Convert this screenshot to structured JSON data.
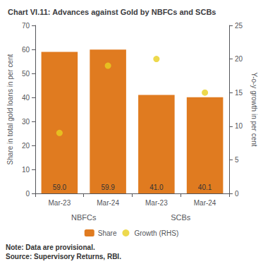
{
  "chart_data": {
    "type": "bar",
    "title": "Chart VI.11: Advances against Gold by NBFCs and SCBs",
    "categories": [
      "Mar-23",
      "Mar-24",
      "Mar-23",
      "Mar-24"
    ],
    "annotations": [
      "NBFCs",
      "SCBs"
    ],
    "note": "Note: Data are provisional.\nSource: Supervisory Returns, RBI.",
    "series": [
      {
        "name": "Share",
        "type": "bar",
        "color": "#E07B20",
        "values": [
          59.0,
          59.9,
          41.0,
          40.1
        ],
        "value_labels": [
          "59.0",
          "59.9",
          "41.0",
          "40.1"
        ],
        "data_labels": true
      },
      {
        "name": "Growth (RHS)",
        "type": "scatter",
        "color": "#E8D020",
        "marker": "circle",
        "axis": "y2",
        "values": [
          9.0,
          19.0,
          20.0,
          15.0
        ]
      }
    ],
    "ylabel": "Share in total gold loans in per cent",
    "y2label": "Y-o-y growth in per cent",
    "ylim": [
      0,
      70
    ],
    "yticks": [
      0,
      10,
      20,
      30,
      40,
      50,
      60,
      70
    ],
    "y2lim": [
      0,
      25
    ],
    "y2ticks": [
      0,
      5,
      10,
      15,
      20,
      25
    ],
    "legend": "bottom",
    "grid": false
  }
}
